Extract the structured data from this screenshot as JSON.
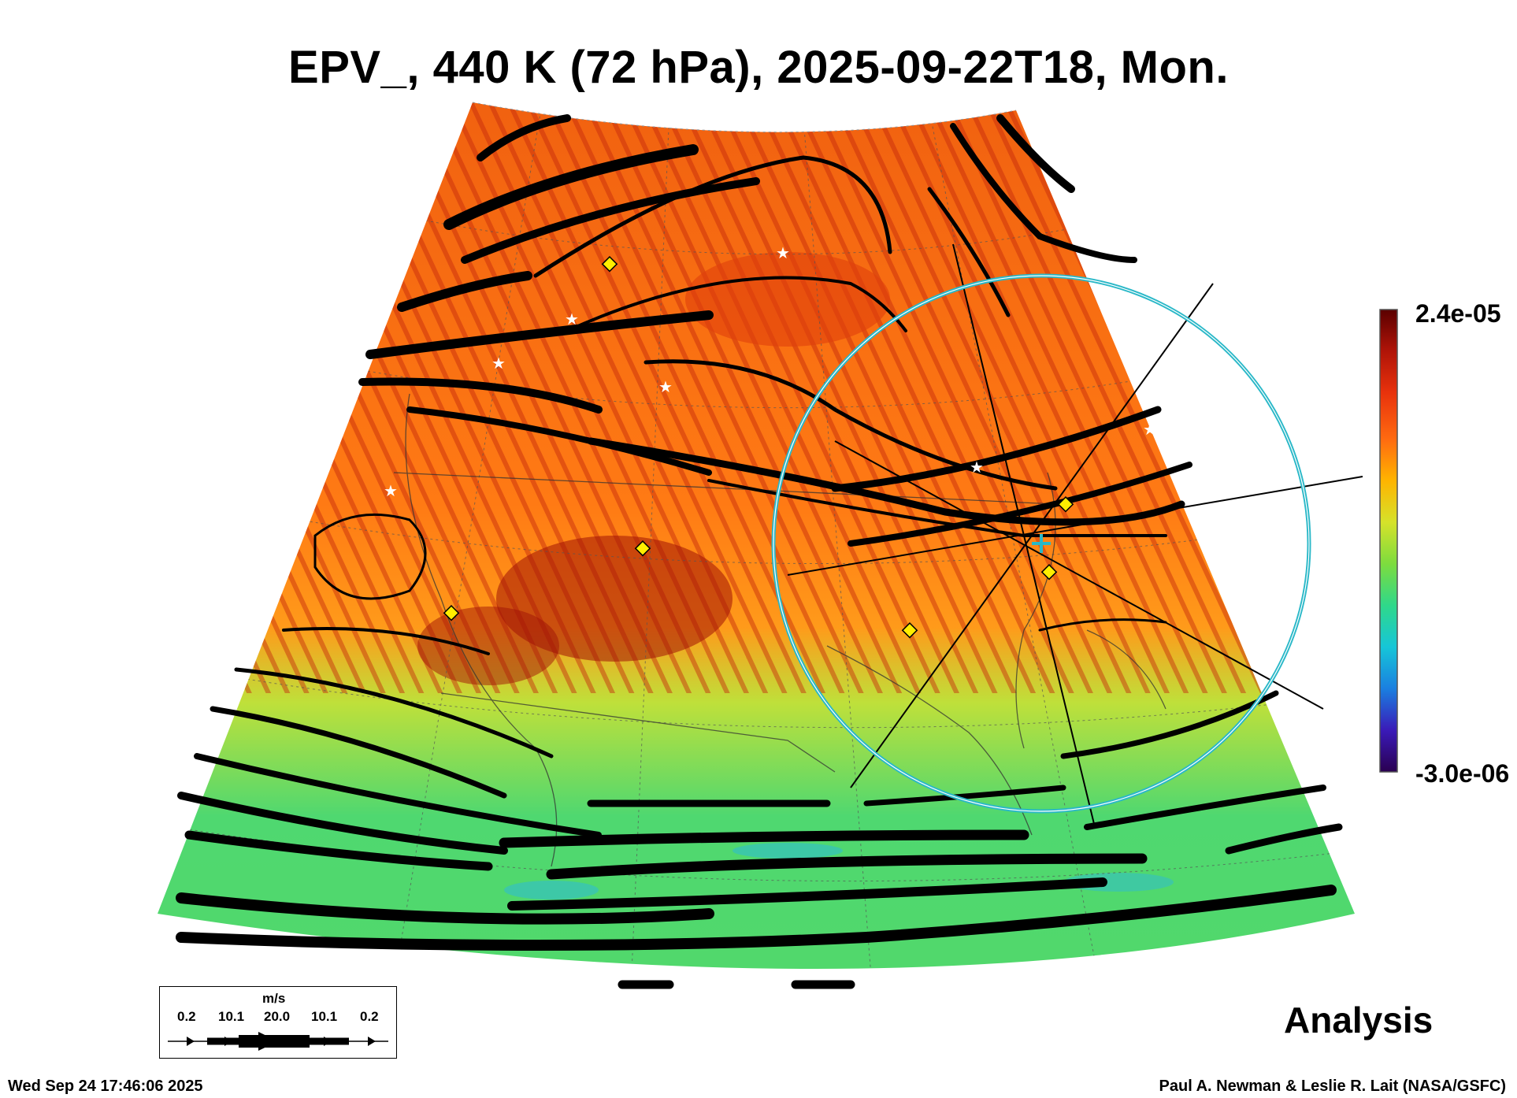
{
  "title": "EPV_, 440 K (72 hPa), 2025-09-22T18, Mon.",
  "colorbar": {
    "max_label": "2.4e-05",
    "min_label": "-3.0e-06",
    "stops": [
      "#2a0050",
      "#3a1ab8",
      "#1a7fe0",
      "#16c6d8",
      "#2fd88a",
      "#7ddc3e",
      "#d6e22a",
      "#ffb400",
      "#ff6a10",
      "#e8320c",
      "#b01408",
      "#5a0000"
    ]
  },
  "product_label": "Analysis",
  "timestamp": "Wed Sep 24 17:46:06 2025",
  "credit": "Paul A. Newman & Leslie R. Lait (NASA/GSFC)",
  "wind_legend": {
    "unit": "m/s",
    "ticks": [
      "0.2",
      "10.1",
      "20.0",
      "10.1",
      "0.2"
    ]
  },
  "map": {
    "field_colors": {
      "high": "#ff6a10",
      "mid": "#d6e22a",
      "low": "#2fd88a"
    },
    "marker_colors": {
      "diamond": "#ffee00",
      "star": "#ffffff",
      "ring": "#2ab8c8"
    }
  }
}
